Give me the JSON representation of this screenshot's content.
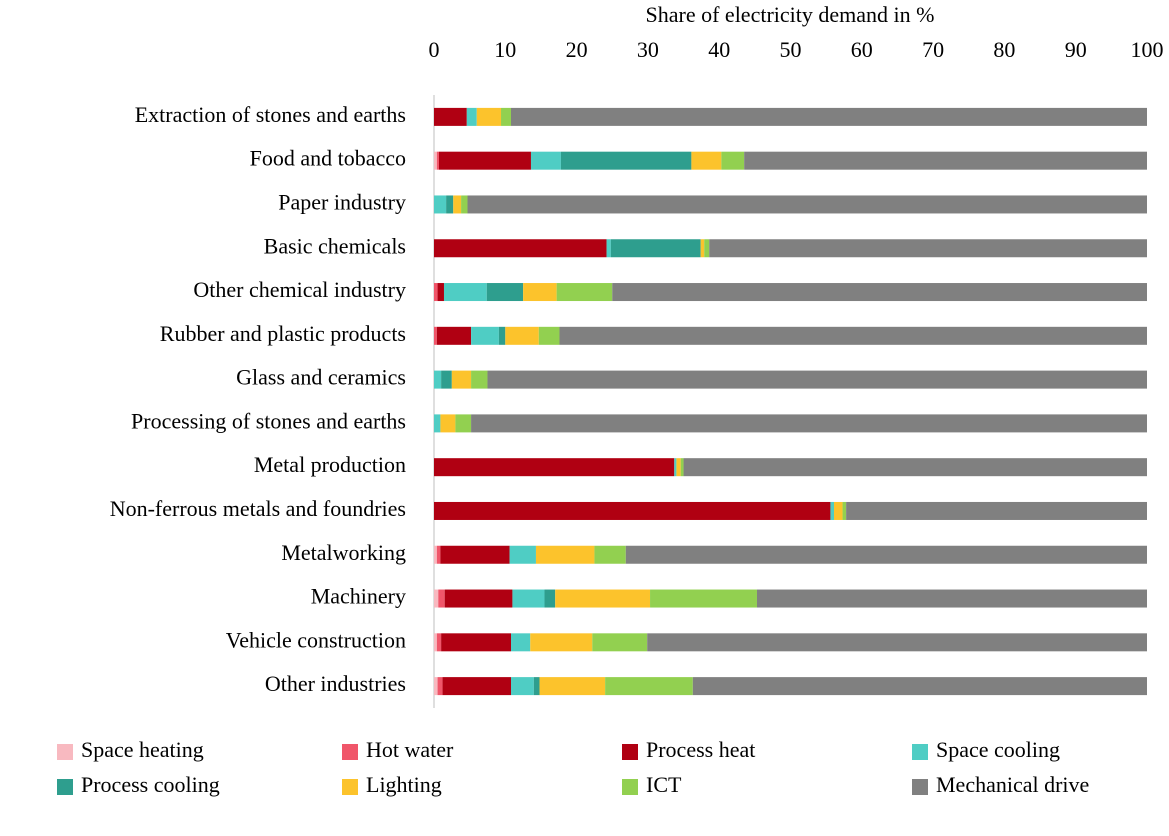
{
  "chart_data": {
    "type": "stacked-barh",
    "x_label": "Share of electricity demand in %",
    "categories": [
      "Extraction of stones and earths",
      "Food and tobacco",
      "Paper industry",
      "Basic chemicals",
      "Other chemical industry",
      "Rubber and plastic products",
      "Glass and ceramics",
      "Processing of stones and earths",
      "Metal production",
      "Non-ferrous metals and foundries",
      "Metalworking",
      "Machinery",
      "Vehicle construction",
      "Other industries"
    ],
    "series": [
      {
        "name": "Space heating",
        "color": "#f8b9c0",
        "values": [
          0,
          0.4,
          0,
          0,
          0,
          0,
          0,
          0,
          0,
          0,
          0.4,
          0.6,
          0.4,
          0.5
        ]
      },
      {
        "name": "Hot water",
        "color": "#f0566a",
        "values": [
          0,
          0.3,
          0,
          0,
          0.5,
          0.4,
          0,
          0,
          0,
          0,
          0.5,
          0.9,
          0.6,
          0.7
        ]
      },
      {
        "name": "Process heat",
        "color": "#b00012",
        "values": [
          4.6,
          12.9,
          0,
          24.2,
          0.9,
          4.8,
          0,
          0,
          33.7,
          55.6,
          9.7,
          9.5,
          9.8,
          9.6
        ]
      },
      {
        "name": "Space cooling",
        "color": "#4fcdc4",
        "values": [
          1.4,
          4.2,
          1.7,
          0.6,
          6.0,
          3.9,
          1.0,
          0.9,
          0.3,
          0.5,
          3.7,
          4.5,
          2.7,
          3.2
        ]
      },
      {
        "name": "Process cooling",
        "color": "#2e9e8e",
        "values": [
          0,
          18.3,
          1.0,
          12.6,
          5.1,
          0.9,
          1.5,
          0,
          0,
          0,
          0,
          1.5,
          0,
          0.8
        ]
      },
      {
        "name": "Lighting",
        "color": "#fcc32c",
        "values": [
          3.4,
          4.2,
          1.1,
          0.5,
          4.7,
          4.7,
          2.7,
          2.1,
          0.6,
          1.2,
          8.2,
          13.3,
          8.7,
          9.2
        ]
      },
      {
        "name": "ICT",
        "color": "#92d050",
        "values": [
          1.4,
          3.2,
          0.9,
          0.7,
          7.8,
          2.9,
          2.3,
          2.2,
          0.4,
          0.5,
          4.4,
          15.0,
          7.7,
          12.3
        ]
      },
      {
        "name": "Mechanical drive",
        "color": "#808080",
        "values": [
          89.2,
          56.5,
          95.3,
          61.4,
          75.0,
          82.4,
          92.5,
          94.8,
          65.0,
          42.2,
          73.1,
          54.7,
          70.1,
          63.7
        ]
      }
    ],
    "xlim": [
      0,
      100
    ],
    "xticks": [
      0,
      10,
      20,
      30,
      40,
      50,
      60,
      70,
      80,
      90,
      100
    ],
    "legend": "bottom"
  }
}
